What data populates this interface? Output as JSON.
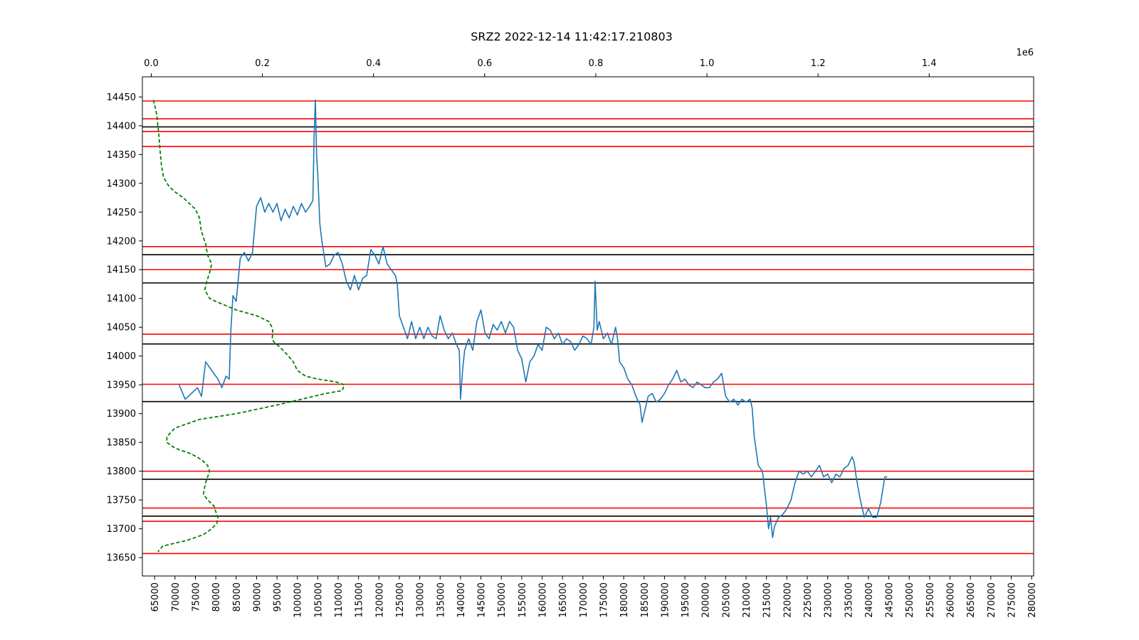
{
  "chart_data": {
    "type": "line",
    "title": "SRZ2 2022-12-14 11:42:17.210803",
    "xlabel": "",
    "ylabel": "",
    "grid": false,
    "xlim": [
      62000,
      280500
    ],
    "ylim": [
      13618,
      14485
    ],
    "x_ticks": [
      65000,
      70000,
      75000,
      80000,
      85000,
      90000,
      95000,
      100000,
      105000,
      110000,
      115000,
      120000,
      125000,
      130000,
      135000,
      140000,
      145000,
      150000,
      155000,
      160000,
      165000,
      170000,
      175000,
      180000,
      185000,
      190000,
      195000,
      200000,
      205000,
      210000,
      215000,
      220000,
      225000,
      230000,
      235000,
      240000,
      245000,
      250000,
      255000,
      260000,
      265000,
      270000,
      275000,
      280000
    ],
    "y_ticks": [
      13650,
      13700,
      13750,
      13800,
      13850,
      13900,
      13950,
      14000,
      14050,
      14100,
      14150,
      14200,
      14250,
      14300,
      14350,
      14400,
      14450
    ],
    "secondary_x": {
      "position": "top",
      "lim": [
        -16000,
        1588000
      ],
      "ticks": [
        0.0,
        0.2,
        0.4,
        0.6,
        0.8,
        1.0,
        1.2,
        1.4
      ],
      "multiplier": "1e6"
    },
    "colors": {
      "price": "#1f77b4",
      "profile": "#008000",
      "red_levels": "#ff0000",
      "black_levels": "#000000"
    },
    "series": [
      {
        "style": "solid",
        "points": [
          [
            71000,
            13950
          ],
          [
            72500,
            13925
          ],
          [
            74000,
            13935
          ],
          [
            75500,
            13945
          ],
          [
            76500,
            13930
          ],
          [
            77500,
            13990
          ],
          [
            79000,
            13975
          ],
          [
            80500,
            13960
          ],
          [
            81500,
            13945
          ],
          [
            82500,
            13965
          ],
          [
            83300,
            13960
          ],
          [
            83700,
            14045
          ],
          [
            84200,
            14105
          ],
          [
            85000,
            14095
          ],
          [
            86000,
            14170
          ],
          [
            87000,
            14180
          ],
          [
            88000,
            14165
          ],
          [
            89000,
            14180
          ],
          [
            90000,
            14260
          ],
          [
            91000,
            14275
          ],
          [
            92000,
            14250
          ],
          [
            93000,
            14265
          ],
          [
            94000,
            14250
          ],
          [
            95000,
            14265
          ],
          [
            96000,
            14235
          ],
          [
            97000,
            14255
          ],
          [
            98000,
            14240
          ],
          [
            99000,
            14260
          ],
          [
            100000,
            14245
          ],
          [
            101000,
            14265
          ],
          [
            102000,
            14250
          ],
          [
            103000,
            14260
          ],
          [
            103800,
            14270
          ],
          [
            104100,
            14380
          ],
          [
            104400,
            14445
          ],
          [
            104700,
            14350
          ],
          [
            105000,
            14315
          ],
          [
            105500,
            14230
          ],
          [
            106000,
            14200
          ],
          [
            107000,
            14155
          ],
          [
            108000,
            14160
          ],
          [
            109000,
            14175
          ],
          [
            110000,
            14180
          ],
          [
            111000,
            14160
          ],
          [
            112000,
            14130
          ],
          [
            113000,
            14115
          ],
          [
            114000,
            14140
          ],
          [
            115000,
            14115
          ],
          [
            116000,
            14135
          ],
          [
            117000,
            14140
          ],
          [
            118000,
            14185
          ],
          [
            119000,
            14175
          ],
          [
            120000,
            14160
          ],
          [
            121000,
            14190
          ],
          [
            122000,
            14160
          ],
          [
            123000,
            14150
          ],
          [
            124000,
            14140
          ],
          [
            124500,
            14125
          ],
          [
            125000,
            14070
          ],
          [
            126000,
            14050
          ],
          [
            127000,
            14030
          ],
          [
            128000,
            14060
          ],
          [
            129000,
            14030
          ],
          [
            130000,
            14050
          ],
          [
            131000,
            14030
          ],
          [
            132000,
            14050
          ],
          [
            133000,
            14035
          ],
          [
            134000,
            14030
          ],
          [
            135000,
            14070
          ],
          [
            136000,
            14045
          ],
          [
            137000,
            14030
          ],
          [
            138000,
            14040
          ],
          [
            139000,
            14020
          ],
          [
            139700,
            14010
          ],
          [
            140000,
            13925
          ],
          [
            140500,
            13975
          ],
          [
            141000,
            14010
          ],
          [
            142000,
            14030
          ],
          [
            143000,
            14010
          ],
          [
            144000,
            14060
          ],
          [
            145000,
            14080
          ],
          [
            146000,
            14040
          ],
          [
            147000,
            14030
          ],
          [
            148000,
            14055
          ],
          [
            149000,
            14045
          ],
          [
            150000,
            14060
          ],
          [
            151000,
            14040
          ],
          [
            152000,
            14060
          ],
          [
            153000,
            14050
          ],
          [
            154000,
            14010
          ],
          [
            155000,
            13995
          ],
          [
            156000,
            13955
          ],
          [
            157000,
            13990
          ],
          [
            158000,
            14000
          ],
          [
            159000,
            14020
          ],
          [
            160000,
            14010
          ],
          [
            161000,
            14050
          ],
          [
            162000,
            14045
          ],
          [
            163000,
            14030
          ],
          [
            164000,
            14040
          ],
          [
            165000,
            14020
          ],
          [
            166000,
            14030
          ],
          [
            167000,
            14025
          ],
          [
            168000,
            14010
          ],
          [
            169000,
            14020
          ],
          [
            170000,
            14035
          ],
          [
            171000,
            14030
          ],
          [
            172000,
            14020
          ],
          [
            172700,
            14050
          ],
          [
            173000,
            14130
          ],
          [
            173500,
            14045
          ],
          [
            174000,
            14060
          ],
          [
            175000,
            14030
          ],
          [
            176000,
            14040
          ],
          [
            177000,
            14020
          ],
          [
            178000,
            14050
          ],
          [
            178500,
            14030
          ],
          [
            179000,
            13990
          ],
          [
            180000,
            13980
          ],
          [
            181000,
            13960
          ],
          [
            182000,
            13950
          ],
          [
            183000,
            13930
          ],
          [
            184000,
            13915
          ],
          [
            184500,
            13885
          ],
          [
            185000,
            13900
          ],
          [
            186000,
            13930
          ],
          [
            187000,
            13935
          ],
          [
            188000,
            13920
          ],
          [
            189000,
            13925
          ],
          [
            190000,
            13935
          ],
          [
            191000,
            13950
          ],
          [
            192000,
            13960
          ],
          [
            193000,
            13975
          ],
          [
            194000,
            13955
          ],
          [
            195000,
            13960
          ],
          [
            196000,
            13950
          ],
          [
            197000,
            13945
          ],
          [
            198000,
            13955
          ],
          [
            199000,
            13950
          ],
          [
            200000,
            13945
          ],
          [
            201000,
            13945
          ],
          [
            202000,
            13955
          ],
          [
            203000,
            13960
          ],
          [
            204000,
            13970
          ],
          [
            205000,
            13930
          ],
          [
            206000,
            13920
          ],
          [
            207000,
            13925
          ],
          [
            208000,
            13915
          ],
          [
            209000,
            13925
          ],
          [
            210000,
            13920
          ],
          [
            211000,
            13925
          ],
          [
            211500,
            13910
          ],
          [
            212000,
            13860
          ],
          [
            213000,
            13810
          ],
          [
            214000,
            13800
          ],
          [
            215000,
            13740
          ],
          [
            215500,
            13700
          ],
          [
            216000,
            13720
          ],
          [
            216500,
            13685
          ],
          [
            217000,
            13705
          ],
          [
            218000,
            13720
          ],
          [
            219000,
            13725
          ],
          [
            220000,
            13735
          ],
          [
            221000,
            13750
          ],
          [
            222000,
            13780
          ],
          [
            223000,
            13800
          ],
          [
            224000,
            13795
          ],
          [
            225000,
            13800
          ],
          [
            226000,
            13790
          ],
          [
            227000,
            13800
          ],
          [
            228000,
            13810
          ],
          [
            229000,
            13790
          ],
          [
            230000,
            13795
          ],
          [
            231000,
            13780
          ],
          [
            232000,
            13795
          ],
          [
            233000,
            13790
          ],
          [
            234000,
            13805
          ],
          [
            235000,
            13810
          ],
          [
            236000,
            13825
          ],
          [
            236500,
            13815
          ],
          [
            237000,
            13790
          ],
          [
            238000,
            13750
          ],
          [
            239000,
            13720
          ],
          [
            240000,
            13735
          ],
          [
            241000,
            13720
          ],
          [
            242000,
            13720
          ],
          [
            243000,
            13745
          ],
          [
            244000,
            13790
          ],
          [
            244600,
            13790
          ]
        ]
      },
      {
        "style": "dashed",
        "points": [
          [
            64700,
            14445
          ],
          [
            65500,
            14420
          ],
          [
            66100,
            14380
          ],
          [
            66300,
            14360
          ],
          [
            66700,
            14330
          ],
          [
            67200,
            14310
          ],
          [
            68500,
            14295
          ],
          [
            70000,
            14285
          ],
          [
            72000,
            14275
          ],
          [
            73500,
            14265
          ],
          [
            75000,
            14255
          ],
          [
            76000,
            14240
          ],
          [
            76400,
            14220
          ],
          [
            77000,
            14205
          ],
          [
            77500,
            14195
          ],
          [
            78000,
            14175
          ],
          [
            79000,
            14160
          ],
          [
            78500,
            14145
          ],
          [
            77800,
            14130
          ],
          [
            77300,
            14115
          ],
          [
            78500,
            14100
          ],
          [
            80000,
            14095
          ],
          [
            85000,
            14080
          ],
          [
            90000,
            14070
          ],
          [
            93000,
            14060
          ],
          [
            93800,
            14050
          ],
          [
            94000,
            14040
          ],
          [
            93800,
            14030
          ],
          [
            94200,
            14025
          ],
          [
            95000,
            14020
          ],
          [
            96500,
            14010
          ],
          [
            97800,
            14000
          ],
          [
            99000,
            13990
          ],
          [
            100000,
            13975
          ],
          [
            102000,
            13965
          ],
          [
            105000,
            13960
          ],
          [
            109500,
            13955
          ],
          [
            111500,
            13950
          ],
          [
            111000,
            13940
          ],
          [
            107000,
            13935
          ],
          [
            101000,
            13925
          ],
          [
            95000,
            13915
          ],
          [
            85000,
            13900
          ],
          [
            76000,
            13890
          ],
          [
            70000,
            13875
          ],
          [
            68000,
            13860
          ],
          [
            68000,
            13850
          ],
          [
            70000,
            13840
          ],
          [
            74000,
            13830
          ],
          [
            76500,
            13820
          ],
          [
            78000,
            13810
          ],
          [
            78500,
            13800
          ],
          [
            78000,
            13790
          ],
          [
            77500,
            13780
          ],
          [
            77200,
            13770
          ],
          [
            77000,
            13760
          ],
          [
            78000,
            13750
          ],
          [
            79500,
            13740
          ],
          [
            80000,
            13730
          ],
          [
            80500,
            13720
          ],
          [
            80300,
            13710
          ],
          [
            79000,
            13700
          ],
          [
            77000,
            13690
          ],
          [
            73000,
            13680
          ],
          [
            67000,
            13670
          ],
          [
            65800,
            13660
          ]
        ]
      }
    ],
    "hlines": {
      "red": [
        14443,
        14412,
        14390,
        14364,
        14190,
        14150,
        14038,
        13951,
        13800,
        13736,
        13713,
        13657
      ],
      "black": [
        14398,
        14176,
        14127,
        14021,
        13921,
        13786,
        13722
      ]
    }
  }
}
